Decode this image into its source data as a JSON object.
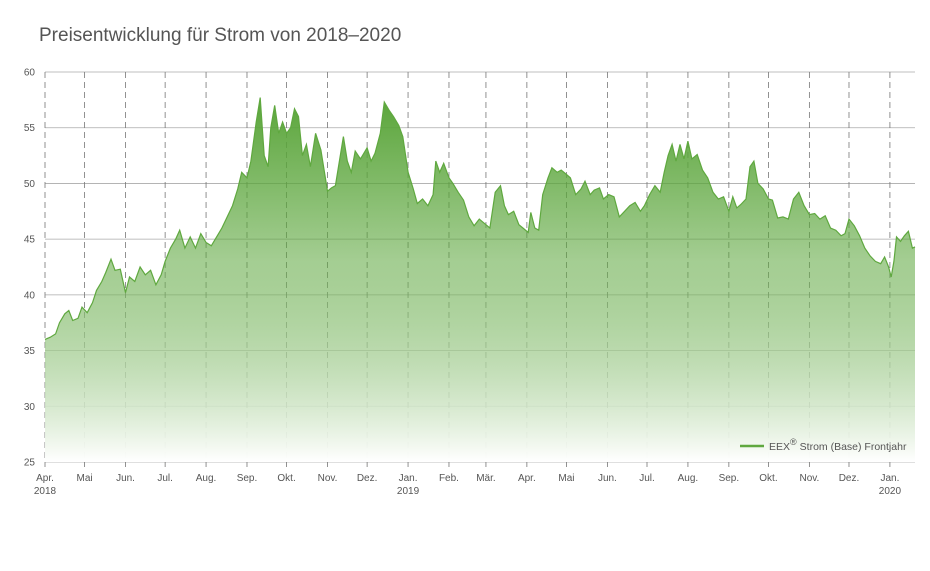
{
  "colors": {
    "line": "#5fa83f",
    "fill_top": "#5aa53a",
    "fill_bottom": "#ffffff",
    "grid": "#aaaaaa",
    "text": "#555555"
  },
  "chart_data": {
    "type": "area",
    "title": "Preisentwicklung für Strom von 2018–2020",
    "xlabel": "",
    "ylabel": "",
    "ylim": [
      25,
      60
    ],
    "yticks": [
      25,
      30,
      35,
      40,
      45,
      50,
      55,
      60
    ],
    "x_tick_labels": [
      {
        "label": "Apr.",
        "sub": "2018"
      },
      {
        "label": "Mai",
        "sub": ""
      },
      {
        "label": "Jun.",
        "sub": ""
      },
      {
        "label": "Jul.",
        "sub": ""
      },
      {
        "label": "Aug.",
        "sub": ""
      },
      {
        "label": "Sep.",
        "sub": ""
      },
      {
        "label": "Okt.",
        "sub": ""
      },
      {
        "label": "Nov.",
        "sub": ""
      },
      {
        "label": "Dez.",
        "sub": ""
      },
      {
        "label": "Jan.",
        "sub": "2019"
      },
      {
        "label": "Feb.",
        "sub": ""
      },
      {
        "label": "Mär.",
        "sub": ""
      },
      {
        "label": "Apr.",
        "sub": ""
      },
      {
        "label": "Mai",
        "sub": ""
      },
      {
        "label": "Jun.",
        "sub": ""
      },
      {
        "label": "Jul.",
        "sub": ""
      },
      {
        "label": "Aug.",
        "sub": ""
      },
      {
        "label": "Sep.",
        "sub": ""
      },
      {
        "label": "Okt.",
        "sub": ""
      },
      {
        "label": "Nov.",
        "sub": ""
      },
      {
        "label": "Dez.",
        "sub": ""
      },
      {
        "label": "Jan.",
        "sub": "2020"
      }
    ],
    "legend": {
      "label": "EEX",
      "mark": "®",
      "suffix": "Strom (Base) Frontjahr",
      "position": "bottom-right"
    },
    "grid": {
      "horizontal": true,
      "vertical_dashed": true
    },
    "x_start": "2018-04-01",
    "x_end": "2020-01-20",
    "series": [
      {
        "name": "EEX® Strom (Base) Frontjahr",
        "points": [
          [
            "2018-04-01",
            36.0
          ],
          [
            "2018-04-05",
            36.2
          ],
          [
            "2018-04-09",
            36.5
          ],
          [
            "2018-04-12",
            37.5
          ],
          [
            "2018-04-16",
            38.3
          ],
          [
            "2018-04-19",
            38.6
          ],
          [
            "2018-04-22",
            37.7
          ],
          [
            "2018-04-26",
            37.9
          ],
          [
            "2018-04-29",
            38.9
          ],
          [
            "2018-05-03",
            38.4
          ],
          [
            "2018-05-07",
            39.3
          ],
          [
            "2018-05-10",
            40.4
          ],
          [
            "2018-05-14",
            41.2
          ],
          [
            "2018-05-17",
            42.0
          ],
          [
            "2018-05-21",
            43.2
          ],
          [
            "2018-05-24",
            42.2
          ],
          [
            "2018-05-28",
            42.3
          ],
          [
            "2018-06-01",
            40.2
          ],
          [
            "2018-06-04",
            41.6
          ],
          [
            "2018-06-08",
            41.2
          ],
          [
            "2018-06-12",
            42.5
          ],
          [
            "2018-06-16",
            41.8
          ],
          [
            "2018-06-20",
            42.2
          ],
          [
            "2018-06-24",
            40.9
          ],
          [
            "2018-06-28",
            41.8
          ],
          [
            "2018-07-01",
            43.0
          ],
          [
            "2018-07-05",
            44.2
          ],
          [
            "2018-07-09",
            45.0
          ],
          [
            "2018-07-12",
            45.8
          ],
          [
            "2018-07-16",
            44.2
          ],
          [
            "2018-07-20",
            45.2
          ],
          [
            "2018-07-24",
            44.2
          ],
          [
            "2018-07-28",
            45.5
          ],
          [
            "2018-08-01",
            44.7
          ],
          [
            "2018-08-05",
            44.4
          ],
          [
            "2018-08-09",
            45.2
          ],
          [
            "2018-08-13",
            46.0
          ],
          [
            "2018-08-17",
            47.0
          ],
          [
            "2018-08-21",
            48.0
          ],
          [
            "2018-08-25",
            49.5
          ],
          [
            "2018-08-28",
            51.0
          ],
          [
            "2018-09-01",
            50.5
          ],
          [
            "2018-09-04",
            52.0
          ],
          [
            "2018-09-08",
            55.5
          ],
          [
            "2018-09-11",
            57.7
          ],
          [
            "2018-09-14",
            52.5
          ],
          [
            "2018-09-17",
            51.5
          ],
          [
            "2018-09-19",
            55.0
          ],
          [
            "2018-09-22",
            57.0
          ],
          [
            "2018-09-25",
            54.5
          ],
          [
            "2018-09-28",
            55.5
          ],
          [
            "2018-10-01",
            54.5
          ],
          [
            "2018-10-04",
            55.0
          ],
          [
            "2018-10-07",
            56.7
          ],
          [
            "2018-10-10",
            56.0
          ],
          [
            "2018-10-13",
            52.5
          ],
          [
            "2018-10-16",
            53.5
          ],
          [
            "2018-10-19",
            51.5
          ],
          [
            "2018-10-23",
            54.5
          ],
          [
            "2018-10-27",
            53.0
          ],
          [
            "2018-11-01",
            49.3
          ],
          [
            "2018-11-04",
            49.6
          ],
          [
            "2018-11-07",
            49.8
          ],
          [
            "2018-11-10",
            52.0
          ],
          [
            "2018-11-13",
            54.2
          ],
          [
            "2018-11-16",
            52.0
          ],
          [
            "2018-11-19",
            51.0
          ],
          [
            "2018-11-22",
            52.9
          ],
          [
            "2018-11-26",
            52.2
          ],
          [
            "2018-12-01",
            53.2
          ],
          [
            "2018-12-04",
            52.0
          ],
          [
            "2018-12-07",
            52.7
          ],
          [
            "2018-12-11",
            54.5
          ],
          [
            "2018-12-14",
            57.3
          ],
          [
            "2018-12-18",
            56.5
          ],
          [
            "2018-12-21",
            56.0
          ],
          [
            "2018-12-25",
            55.2
          ],
          [
            "2018-12-28",
            54.2
          ],
          [
            "2019-01-01",
            51.0
          ],
          [
            "2019-01-05",
            49.5
          ],
          [
            "2019-01-08",
            48.2
          ],
          [
            "2019-01-12",
            48.6
          ],
          [
            "2019-01-16",
            48.0
          ],
          [
            "2019-01-20",
            49.0
          ],
          [
            "2019-01-22",
            52.0
          ],
          [
            "2019-01-25",
            51.0
          ],
          [
            "2019-01-28",
            51.8
          ],
          [
            "2019-02-01",
            50.5
          ],
          [
            "2019-02-04",
            50.0
          ],
          [
            "2019-02-08",
            49.2
          ],
          [
            "2019-02-12",
            48.5
          ],
          [
            "2019-02-16",
            47.0
          ],
          [
            "2019-02-20",
            46.2
          ],
          [
            "2019-02-24",
            46.8
          ],
          [
            "2019-03-01",
            46.3
          ],
          [
            "2019-03-04",
            46.0
          ],
          [
            "2019-03-08",
            49.2
          ],
          [
            "2019-03-12",
            49.8
          ],
          [
            "2019-03-15",
            48.0
          ],
          [
            "2019-03-18",
            47.2
          ],
          [
            "2019-03-22",
            47.5
          ],
          [
            "2019-03-26",
            46.3
          ],
          [
            "2019-03-29",
            46.0
          ],
          [
            "2019-04-02",
            45.6
          ],
          [
            "2019-04-04",
            47.4
          ],
          [
            "2019-04-07",
            46.0
          ],
          [
            "2019-04-10",
            45.8
          ],
          [
            "2019-04-13",
            49.0
          ],
          [
            "2019-04-17",
            50.5
          ],
          [
            "2019-04-20",
            51.4
          ],
          [
            "2019-04-24",
            51.0
          ],
          [
            "2019-04-27",
            51.2
          ],
          [
            "2019-05-01",
            50.8
          ],
          [
            "2019-05-04",
            50.5
          ],
          [
            "2019-05-08",
            49.0
          ],
          [
            "2019-05-12",
            49.5
          ],
          [
            "2019-05-15",
            50.2
          ],
          [
            "2019-05-19",
            49.0
          ],
          [
            "2019-05-22",
            49.4
          ],
          [
            "2019-05-26",
            49.6
          ],
          [
            "2019-05-29",
            48.6
          ],
          [
            "2019-06-02",
            49.0
          ],
          [
            "2019-06-06",
            48.8
          ],
          [
            "2019-06-10",
            47.0
          ],
          [
            "2019-06-14",
            47.5
          ],
          [
            "2019-06-18",
            48.0
          ],
          [
            "2019-06-22",
            48.3
          ],
          [
            "2019-06-26",
            47.5
          ],
          [
            "2019-06-29",
            48.0
          ],
          [
            "2019-07-03",
            49.0
          ],
          [
            "2019-07-07",
            49.8
          ],
          [
            "2019-07-11",
            49.2
          ],
          [
            "2019-07-14",
            51.0
          ],
          [
            "2019-07-17",
            52.5
          ],
          [
            "2019-07-20",
            53.5
          ],
          [
            "2019-07-23",
            52.0
          ],
          [
            "2019-07-26",
            53.5
          ],
          [
            "2019-07-29",
            52.2
          ],
          [
            "2019-08-01",
            53.8
          ],
          [
            "2019-08-04",
            52.2
          ],
          [
            "2019-08-08",
            52.6
          ],
          [
            "2019-08-12",
            51.2
          ],
          [
            "2019-08-16",
            50.5
          ],
          [
            "2019-08-20",
            49.2
          ],
          [
            "2019-08-24",
            48.6
          ],
          [
            "2019-08-28",
            48.8
          ],
          [
            "2019-09-01",
            47.5
          ],
          [
            "2019-09-04",
            48.8
          ],
          [
            "2019-09-07",
            47.8
          ],
          [
            "2019-09-10",
            48.1
          ],
          [
            "2019-09-14",
            48.6
          ],
          [
            "2019-09-17",
            51.5
          ],
          [
            "2019-09-20",
            52.0
          ],
          [
            "2019-09-23",
            50.0
          ],
          [
            "2019-09-27",
            49.5
          ],
          [
            "2019-10-01",
            48.6
          ],
          [
            "2019-10-04",
            48.5
          ],
          [
            "2019-10-08",
            46.9
          ],
          [
            "2019-10-12",
            47.0
          ],
          [
            "2019-10-16",
            46.8
          ],
          [
            "2019-10-20",
            48.6
          ],
          [
            "2019-10-24",
            49.2
          ],
          [
            "2019-10-28",
            48.0
          ],
          [
            "2019-11-01",
            47.2
          ],
          [
            "2019-11-05",
            47.3
          ],
          [
            "2019-11-09",
            46.8
          ],
          [
            "2019-11-13",
            47.1
          ],
          [
            "2019-11-17",
            46.0
          ],
          [
            "2019-11-21",
            45.8
          ],
          [
            "2019-11-25",
            45.3
          ],
          [
            "2019-11-28",
            45.5
          ],
          [
            "2019-12-01",
            46.8
          ],
          [
            "2019-12-05",
            46.2
          ],
          [
            "2019-12-09",
            45.3
          ],
          [
            "2019-12-13",
            44.2
          ],
          [
            "2019-12-17",
            43.5
          ],
          [
            "2019-12-21",
            43.0
          ],
          [
            "2019-12-25",
            42.8
          ],
          [
            "2019-12-28",
            43.4
          ],
          [
            "2019-12-31",
            42.5
          ],
          [
            "2020-01-02",
            41.6
          ],
          [
            "2020-01-04",
            43.0
          ],
          [
            "2020-01-06",
            45.2
          ],
          [
            "2020-01-09",
            44.8
          ],
          [
            "2020-01-12",
            45.3
          ],
          [
            "2020-01-15",
            45.7
          ],
          [
            "2020-01-18",
            44.2
          ],
          [
            "2020-01-20",
            44.3
          ]
        ]
      }
    ]
  }
}
